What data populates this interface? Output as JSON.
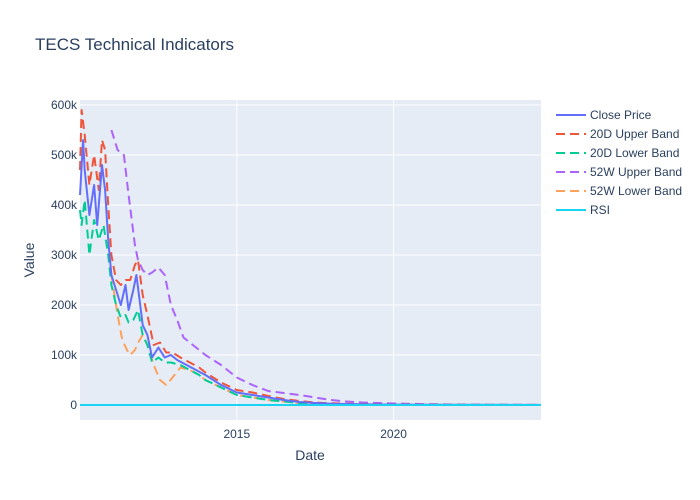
{
  "chart_data": {
    "type": "line",
    "title": "TECS Technical Indicators",
    "xlabel": "Date",
    "ylabel": "Value",
    "xlim": [
      2010.0,
      2024.7
    ],
    "ylim": [
      -30000,
      610000
    ],
    "x_ticks": [
      2015,
      2020
    ],
    "y_ticks": [
      {
        "value": 0,
        "label": "0"
      },
      {
        "value": 100000,
        "label": "100k"
      },
      {
        "value": 200000,
        "label": "200k"
      },
      {
        "value": 300000,
        "label": "300k"
      },
      {
        "value": 400000,
        "label": "400k"
      },
      {
        "value": 500000,
        "label": "500k"
      },
      {
        "value": 600000,
        "label": "600k"
      }
    ],
    "grid": true,
    "legend_position": "right",
    "series": [
      {
        "name": "Close Price",
        "color": "#636efa",
        "dash": "solid",
        "points": [
          [
            2010.0,
            420000
          ],
          [
            2010.1,
            530000
          ],
          [
            2010.15,
            470000
          ],
          [
            2010.3,
            380000
          ],
          [
            2010.45,
            440000
          ],
          [
            2010.55,
            360000
          ],
          [
            2010.7,
            480000
          ],
          [
            2010.8,
            430000
          ],
          [
            2010.9,
            330000
          ],
          [
            2011.0,
            260000
          ],
          [
            2011.15,
            230000
          ],
          [
            2011.3,
            200000
          ],
          [
            2011.45,
            240000
          ],
          [
            2011.55,
            190000
          ],
          [
            2011.7,
            230000
          ],
          [
            2011.8,
            260000
          ],
          [
            2011.9,
            210000
          ],
          [
            2012.0,
            160000
          ],
          [
            2012.15,
            140000
          ],
          [
            2012.3,
            95000
          ],
          [
            2012.5,
            115000
          ],
          [
            2012.7,
            95000
          ],
          [
            2012.9,
            100000
          ],
          [
            2013.1,
            90000
          ],
          [
            2013.4,
            80000
          ],
          [
            2013.7,
            70000
          ],
          [
            2014.0,
            60000
          ],
          [
            2014.5,
            40000
          ],
          [
            2015.0,
            25000
          ],
          [
            2015.5,
            20000
          ],
          [
            2016.0,
            15000
          ],
          [
            2016.5,
            10000
          ],
          [
            2017.0,
            6000
          ],
          [
            2017.5,
            4000
          ],
          [
            2018.0,
            2500
          ],
          [
            2019.0,
            1500
          ],
          [
            2020.0,
            800
          ],
          [
            2021.0,
            500
          ],
          [
            2022.0,
            300
          ],
          [
            2023.0,
            150
          ],
          [
            2024.7,
            100
          ]
        ]
      },
      {
        "name": "20D Upper Band",
        "color": "#ef553b",
        "dash": "dash",
        "points": [
          [
            2010.0,
            470000
          ],
          [
            2010.05,
            590000
          ],
          [
            2010.15,
            540000
          ],
          [
            2010.3,
            440000
          ],
          [
            2010.45,
            500000
          ],
          [
            2010.6,
            430000
          ],
          [
            2010.7,
            530000
          ],
          [
            2010.8,
            510000
          ],
          [
            2010.9,
            400000
          ],
          [
            2011.0,
            300000
          ],
          [
            2011.15,
            250000
          ],
          [
            2011.3,
            240000
          ],
          [
            2011.45,
            250000
          ],
          [
            2011.6,
            250000
          ],
          [
            2011.75,
            280000
          ],
          [
            2011.85,
            290000
          ],
          [
            2012.0,
            220000
          ],
          [
            2012.15,
            180000
          ],
          [
            2012.35,
            120000
          ],
          [
            2012.55,
            125000
          ],
          [
            2012.75,
            105000
          ],
          [
            2012.95,
            105000
          ],
          [
            2013.2,
            95000
          ],
          [
            2013.5,
            85000
          ],
          [
            2013.8,
            75000
          ],
          [
            2014.0,
            65000
          ],
          [
            2014.5,
            45000
          ],
          [
            2015.0,
            30000
          ],
          [
            2015.5,
            25000
          ],
          [
            2016.0,
            18000
          ],
          [
            2016.5,
            12000
          ],
          [
            2017.0,
            8000
          ],
          [
            2017.5,
            5000
          ],
          [
            2018.0,
            3500
          ],
          [
            2019.0,
            2000
          ],
          [
            2020.0,
            1000
          ],
          [
            2021.0,
            700
          ],
          [
            2022.0,
            400
          ],
          [
            2023.0,
            200
          ],
          [
            2024.7,
            150
          ]
        ]
      },
      {
        "name": "20D Lower Band",
        "color": "#00cc96",
        "dash": "dash",
        "points": [
          [
            2010.0,
            390000
          ],
          [
            2010.05,
            360000
          ],
          [
            2010.15,
            410000
          ],
          [
            2010.3,
            300000
          ],
          [
            2010.45,
            370000
          ],
          [
            2010.6,
            330000
          ],
          [
            2010.75,
            360000
          ],
          [
            2010.9,
            300000
          ],
          [
            2011.0,
            240000
          ],
          [
            2011.15,
            200000
          ],
          [
            2011.3,
            175000
          ],
          [
            2011.45,
            180000
          ],
          [
            2011.55,
            165000
          ],
          [
            2011.7,
            170000
          ],
          [
            2011.85,
            190000
          ],
          [
            2012.0,
            140000
          ],
          [
            2012.15,
            120000
          ],
          [
            2012.3,
            85000
          ],
          [
            2012.5,
            95000
          ],
          [
            2012.7,
            85000
          ],
          [
            2012.9,
            85000
          ],
          [
            2013.2,
            80000
          ],
          [
            2013.5,
            70000
          ],
          [
            2013.8,
            60000
          ],
          [
            2014.0,
            50000
          ],
          [
            2014.5,
            35000
          ],
          [
            2015.0,
            20000
          ],
          [
            2015.5,
            15000
          ],
          [
            2016.0,
            10000
          ],
          [
            2016.5,
            7000
          ],
          [
            2017.0,
            4000
          ],
          [
            2017.5,
            2500
          ],
          [
            2018.0,
            1500
          ],
          [
            2019.0,
            1000
          ],
          [
            2020.0,
            500
          ],
          [
            2021.0,
            300
          ],
          [
            2022.0,
            200
          ],
          [
            2023.0,
            100
          ],
          [
            2024.7,
            50
          ]
        ]
      },
      {
        "name": "52W Upper Band",
        "color": "#ab63fa",
        "dash": "dash",
        "points": [
          [
            2011.0,
            550000
          ],
          [
            2011.2,
            510000
          ],
          [
            2011.4,
            500000
          ],
          [
            2011.55,
            420000
          ],
          [
            2011.75,
            320000
          ],
          [
            2011.85,
            290000
          ],
          [
            2012.0,
            270000
          ],
          [
            2012.15,
            260000
          ],
          [
            2012.3,
            265000
          ],
          [
            2012.5,
            275000
          ],
          [
            2012.7,
            260000
          ],
          [
            2012.9,
            200000
          ],
          [
            2013.1,
            170000
          ],
          [
            2013.3,
            135000
          ],
          [
            2013.6,
            120000
          ],
          [
            2014.0,
            100000
          ],
          [
            2014.5,
            80000
          ],
          [
            2015.0,
            55000
          ],
          [
            2015.5,
            40000
          ],
          [
            2016.0,
            28000
          ],
          [
            2016.5,
            24000
          ],
          [
            2017.0,
            20000
          ],
          [
            2017.5,
            15000
          ],
          [
            2018.0,
            10000
          ],
          [
            2018.5,
            7000
          ],
          [
            2019.0,
            5000
          ],
          [
            2019.5,
            4000
          ],
          [
            2020.0,
            3000
          ],
          [
            2021.0,
            1800
          ],
          [
            2022.0,
            1000
          ],
          [
            2023.0,
            600
          ],
          [
            2024.7,
            300
          ]
        ]
      },
      {
        "name": "52W Lower Band",
        "color": "#ffa15a",
        "dash": "dash",
        "points": [
          [
            2011.0,
            260000
          ],
          [
            2011.2,
            180000
          ],
          [
            2011.35,
            130000
          ],
          [
            2011.5,
            110000
          ],
          [
            2011.6,
            100000
          ],
          [
            2011.75,
            110000
          ],
          [
            2011.9,
            130000
          ],
          [
            2012.0,
            140000
          ],
          [
            2012.15,
            120000
          ],
          [
            2012.35,
            80000
          ],
          [
            2012.55,
            50000
          ],
          [
            2012.75,
            40000
          ],
          [
            2012.95,
            55000
          ],
          [
            2013.2,
            75000
          ],
          [
            2013.5,
            70000
          ],
          [
            2013.8,
            60000
          ],
          [
            2014.0,
            50000
          ],
          [
            2014.5,
            35000
          ],
          [
            2015.0,
            20000
          ],
          [
            2015.5,
            15000
          ],
          [
            2016.0,
            10000
          ],
          [
            2016.5,
            7000
          ],
          [
            2017.0,
            4000
          ],
          [
            2017.5,
            2500
          ],
          [
            2018.0,
            1500
          ],
          [
            2019.0,
            900
          ],
          [
            2020.0,
            500
          ],
          [
            2021.0,
            300
          ],
          [
            2022.0,
            150
          ],
          [
            2023.0,
            80
          ],
          [
            2024.7,
            40
          ]
        ]
      },
      {
        "name": "RSI",
        "color": "#19d3f3",
        "dash": "solid",
        "points": [
          [
            2010.0,
            50
          ],
          [
            2012.0,
            45
          ],
          [
            2014.0,
            40
          ],
          [
            2016.0,
            48
          ],
          [
            2018.0,
            42
          ],
          [
            2020.0,
            50
          ],
          [
            2022.0,
            46
          ],
          [
            2024.7,
            50
          ]
        ]
      }
    ]
  }
}
